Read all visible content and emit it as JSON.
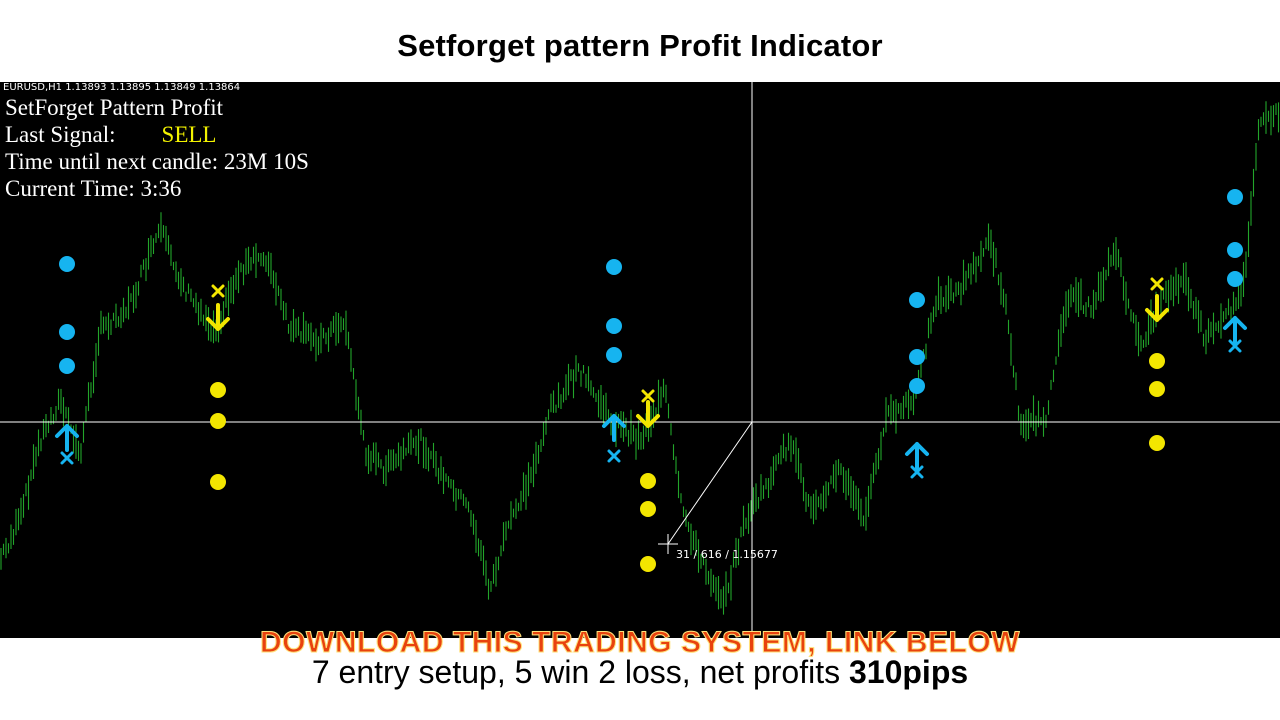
{
  "title": "Setforget pattern Profit Indicator",
  "chart": {
    "symbol_line": "EURUSD,H1  1.13893 1.13895 1.13849 1.13864",
    "panel": {
      "name": "SetForget Pattern Profit",
      "signal_label": "Last Signal:",
      "signal_value": "SELL",
      "timer_text": "Time until next candle: 23M 10S",
      "clock_text": "Current Time: 3:36"
    },
    "cursor_readout": "31 / 616 / 1.15677",
    "colors": {
      "background": "#000000",
      "price": "#22a52a",
      "buy_marker": "#16b4f0",
      "sell_marker": "#f3e600",
      "crosshair": "#ffffff",
      "signal_value": "#f3f300"
    },
    "signals": [
      {
        "type": "buy",
        "icon": "arrow-up-icon",
        "exit_icon": "x-icon"
      },
      {
        "type": "sell",
        "icon": "arrow-down-icon",
        "exit_icon": "x-icon"
      },
      {
        "type": "buy",
        "icon": "arrow-up-icon",
        "exit_icon": "x-icon"
      },
      {
        "type": "sell",
        "icon": "arrow-down-icon",
        "exit_icon": "x-icon"
      },
      {
        "type": "buy",
        "icon": "arrow-up-icon",
        "exit_icon": "x-icon"
      },
      {
        "type": "sell",
        "icon": "arrow-down-icon",
        "exit_icon": "x-icon"
      },
      {
        "type": "buy",
        "icon": "arrow-up-icon",
        "exit_icon": "x-icon"
      }
    ]
  },
  "banner": "DOWNLOAD THIS TRADING SYSTEM, LINK BELOW",
  "stats": {
    "prefix": "7 entry setup, 5 win 2 loss, net profits ",
    "highlight": "310pips"
  }
}
